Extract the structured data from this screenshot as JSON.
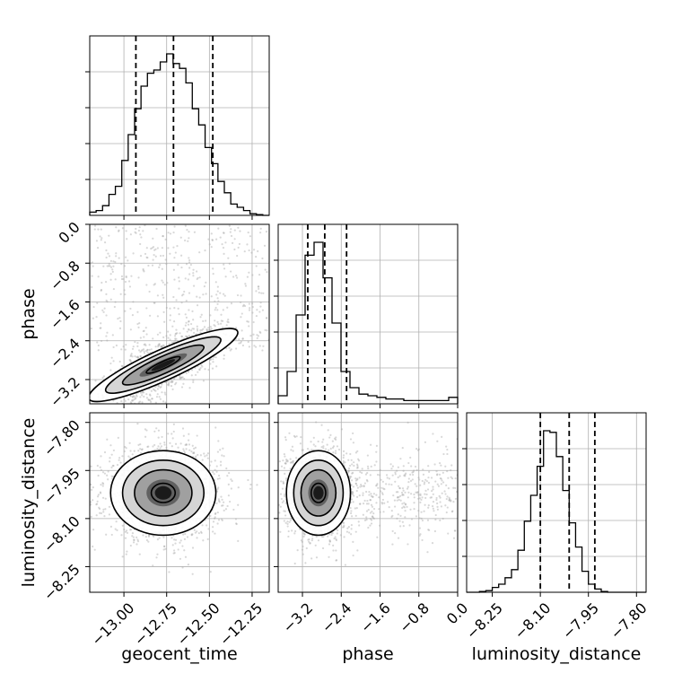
{
  "chart_data": {
    "type": "corner",
    "parameters": [
      "geocent_time",
      "phase",
      "luminosity_distance"
    ],
    "grid": true,
    "quantile_lines": "dashed",
    "axes": {
      "geocent_time": {
        "label": "geocent_time",
        "range": [
          -13.2,
          -12.15
        ],
        "ticks": [
          -13.0,
          -12.75,
          -12.5,
          -12.25
        ],
        "tick_labels": [
          "−13.00",
          "−12.75",
          "−12.50",
          "−12.25"
        ]
      },
      "phase": {
        "label": "phase",
        "range": [
          -3.7,
          0.0
        ],
        "ticks": [
          -3.2,
          -2.4,
          -1.6,
          -0.8,
          0.0
        ],
        "tick_labels": [
          "−3.2",
          "−2.4",
          "−1.6",
          "−0.8",
          "0.0"
        ]
      },
      "luminosity_distance": {
        "label": "luminosity_distance",
        "range": [
          -8.33,
          -7.77
        ],
        "ticks": [
          -8.25,
          -8.1,
          -7.95,
          -7.8
        ],
        "tick_labels": [
          "−8.25",
          "−8.10",
          "−7.95",
          "−7.80"
        ]
      }
    },
    "histograms": [
      {
        "parameter": "geocent_time",
        "bin_edges": [
          -13.2,
          -13.1625,
          -13.125,
          -13.0875,
          -13.05,
          -13.0125,
          -12.975,
          -12.9375,
          -12.9,
          -12.8625,
          -12.825,
          -12.7875,
          -12.75,
          -12.7125,
          -12.675,
          -12.6375,
          -12.6,
          -12.5625,
          -12.525,
          -12.4875,
          -12.45,
          -12.4125,
          -12.375,
          -12.3375,
          -12.3,
          -12.2625,
          -12.225,
          -12.1875,
          -12.15
        ],
        "counts": [
          2,
          3,
          6,
          13,
          18,
          34,
          50,
          66,
          80,
          88,
          90,
          95,
          100,
          94,
          91,
          82,
          66,
          56,
          42,
          32,
          21,
          14,
          7,
          5,
          3,
          1,
          0.5,
          0
        ],
        "quantiles": [
          -12.93,
          -12.71,
          -12.48
        ]
      },
      {
        "parameter": "phase",
        "bin_edges": [
          -3.7,
          -3.515,
          -3.33,
          -3.145,
          -2.96,
          -2.775,
          -2.59,
          -2.405,
          -2.22,
          -2.035,
          -1.85,
          -1.665,
          -1.48,
          -1.295,
          -1.11,
          -0.925,
          -0.74,
          -0.555,
          -0.37,
          -0.185,
          0.0
        ],
        "counts": [
          5,
          20,
          55,
          92,
          100,
          78,
          50,
          20,
          10,
          6,
          5,
          4,
          3,
          3,
          2,
          2,
          2,
          2,
          2,
          4
        ],
        "quantiles": [
          -3.09,
          -2.74,
          -2.29
        ]
      },
      {
        "parameter": "luminosity_distance",
        "bin_edges": [
          -8.33,
          -8.31,
          -8.29,
          -8.27,
          -8.25,
          -8.23,
          -8.21,
          -8.19,
          -8.17,
          -8.15,
          -8.13,
          -8.11,
          -8.09,
          -8.07,
          -8.05,
          -8.03,
          -8.01,
          -7.99,
          -7.97,
          -7.95,
          -7.93,
          -7.91,
          -7.89,
          -7.87,
          -7.85,
          -7.83,
          -7.81,
          -7.79,
          -7.77
        ],
        "counts": [
          0,
          0,
          0.5,
          1,
          3,
          5,
          9,
          14,
          26,
          44,
          60,
          78,
          100,
          99,
          84,
          63,
          43,
          28,
          13,
          5,
          2,
          0.5,
          0,
          0,
          0,
          0,
          0,
          0
        ],
        "quantiles": [
          -8.1,
          -8.01,
          -7.93
        ]
      }
    ],
    "density_panels": [
      {
        "x": "geocent_time",
        "y": "phase",
        "mode": {
          "x": -12.77,
          "y": -2.9
        },
        "correlation": "positive"
      },
      {
        "x": "geocent_time",
        "y": "luminosity_distance",
        "mode": {
          "x": -12.77,
          "y": -8.02
        },
        "correlation": "none"
      },
      {
        "x": "phase",
        "y": "luminosity_distance",
        "mode": {
          "x": -2.87,
          "y": -8.02
        },
        "correlation": "none"
      }
    ]
  }
}
